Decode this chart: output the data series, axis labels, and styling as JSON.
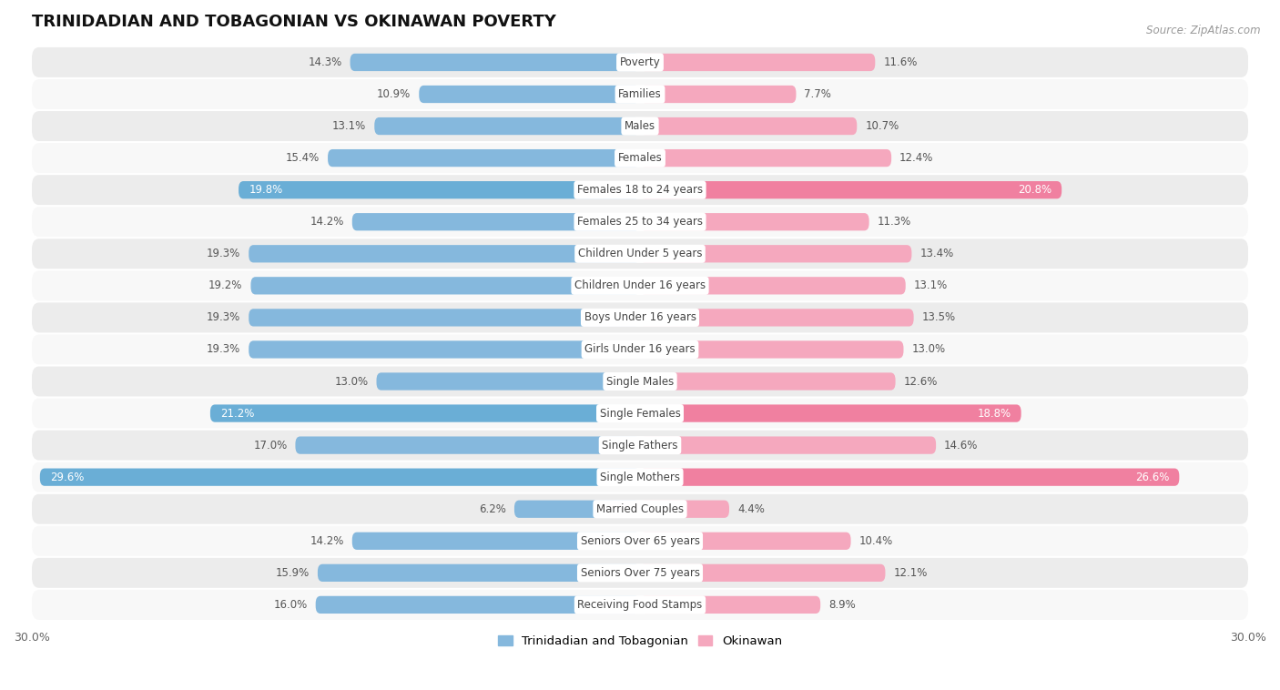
{
  "title": "TRINIDADIAN AND TOBAGONIAN VS OKINAWAN POVERTY",
  "source": "Source: ZipAtlas.com",
  "categories": [
    "Poverty",
    "Families",
    "Males",
    "Females",
    "Females 18 to 24 years",
    "Females 25 to 34 years",
    "Children Under 5 years",
    "Children Under 16 years",
    "Boys Under 16 years",
    "Girls Under 16 years",
    "Single Males",
    "Single Females",
    "Single Fathers",
    "Single Mothers",
    "Married Couples",
    "Seniors Over 65 years",
    "Seniors Over 75 years",
    "Receiving Food Stamps"
  ],
  "left_values": [
    14.3,
    10.9,
    13.1,
    15.4,
    19.8,
    14.2,
    19.3,
    19.2,
    19.3,
    19.3,
    13.0,
    21.2,
    17.0,
    29.6,
    6.2,
    14.2,
    15.9,
    16.0
  ],
  "right_values": [
    11.6,
    7.7,
    10.7,
    12.4,
    20.8,
    11.3,
    13.4,
    13.1,
    13.5,
    13.0,
    12.6,
    18.8,
    14.6,
    26.6,
    4.4,
    10.4,
    12.1,
    8.9
  ],
  "left_color_normal": "#85b8dd",
  "right_color_normal": "#f5a8be",
  "left_color_highlight": "#6aaed6",
  "right_color_highlight": "#f080a0",
  "highlight_indices": [
    4,
    11,
    13
  ],
  "max_value": 30.0,
  "background_color": "#ffffff",
  "row_even_color": "#ececec",
  "row_odd_color": "#f8f8f8",
  "legend_left": "Trinidadian and Tobagonian",
  "legend_right": "Okinawan",
  "title_fontsize": 13,
  "label_fontsize": 8.5,
  "value_fontsize": 8.5
}
